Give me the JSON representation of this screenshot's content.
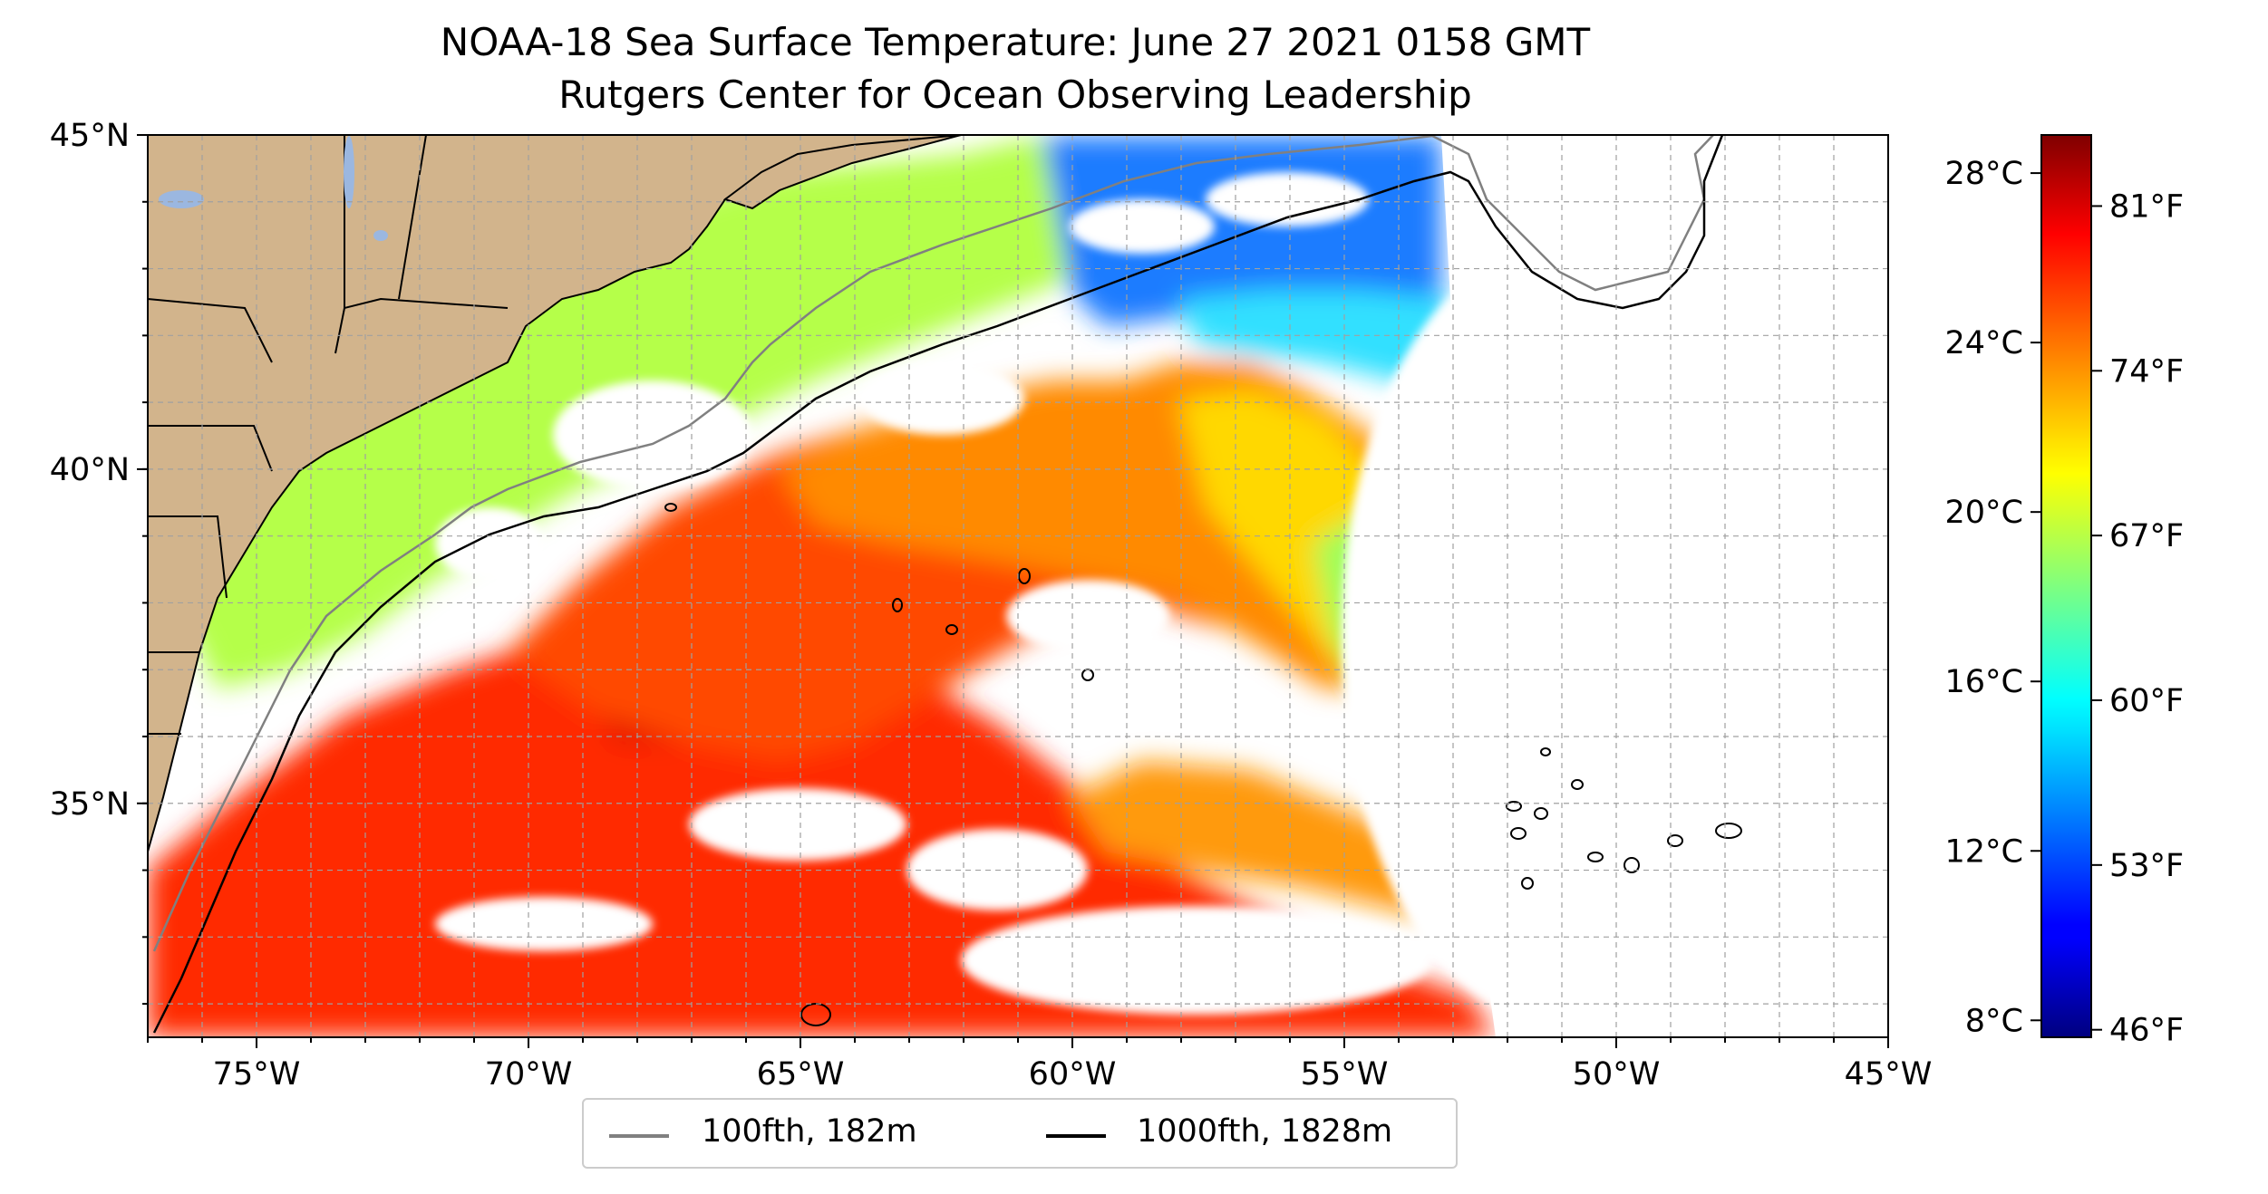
{
  "title": {
    "line1": "NOAA-18 Sea Surface Temperature: June 27 2021 0158 GMT",
    "line2": "Rutgers Center for Ocean Observing Leadership"
  },
  "map": {
    "lon_range": [
      -77,
      -45
    ],
    "lat_range": [
      31.5,
      45
    ],
    "x_ticks": [
      {
        "value": -75,
        "label": "75°W"
      },
      {
        "value": -70,
        "label": "70°W"
      },
      {
        "value": -65,
        "label": "65°W"
      },
      {
        "value": -60,
        "label": "60°W"
      },
      {
        "value": -55,
        "label": "55°W"
      },
      {
        "value": -50,
        "label": "50°W"
      },
      {
        "value": -45,
        "label": "45°W"
      }
    ],
    "y_ticks": [
      {
        "value": 45,
        "label": "45°N"
      },
      {
        "value": 40,
        "label": "40°N"
      },
      {
        "value": 35,
        "label": "35°N"
      }
    ],
    "grid": true,
    "land_color": "#d2b48c",
    "lake_color": "#9bb7e0"
  },
  "colorbar": {
    "colormap": "jet",
    "range_c": [
      7.6,
      28.9
    ],
    "celsius_ticks": [
      {
        "value": 8,
        "label": "8°C"
      },
      {
        "value": 12,
        "label": "12°C"
      },
      {
        "value": 16,
        "label": "16°C"
      },
      {
        "value": 20,
        "label": "20°C"
      },
      {
        "value": 24,
        "label": "24°C"
      },
      {
        "value": 28,
        "label": "28°C"
      }
    ],
    "fahrenheit_ticks": [
      {
        "value": 46,
        "label": "46°F"
      },
      {
        "value": 53,
        "label": "53°F"
      },
      {
        "value": 60,
        "label": "60°F"
      },
      {
        "value": 67,
        "label": "67°F"
      },
      {
        "value": 74,
        "label": "74°F"
      },
      {
        "value": 81,
        "label": "81°F"
      }
    ]
  },
  "legend": {
    "placement": "bottom-center",
    "items": [
      {
        "label": "100fth, 182m",
        "color": "#808080"
      },
      {
        "label": "1000fth, 1828m",
        "color": "#000000"
      }
    ]
  }
}
